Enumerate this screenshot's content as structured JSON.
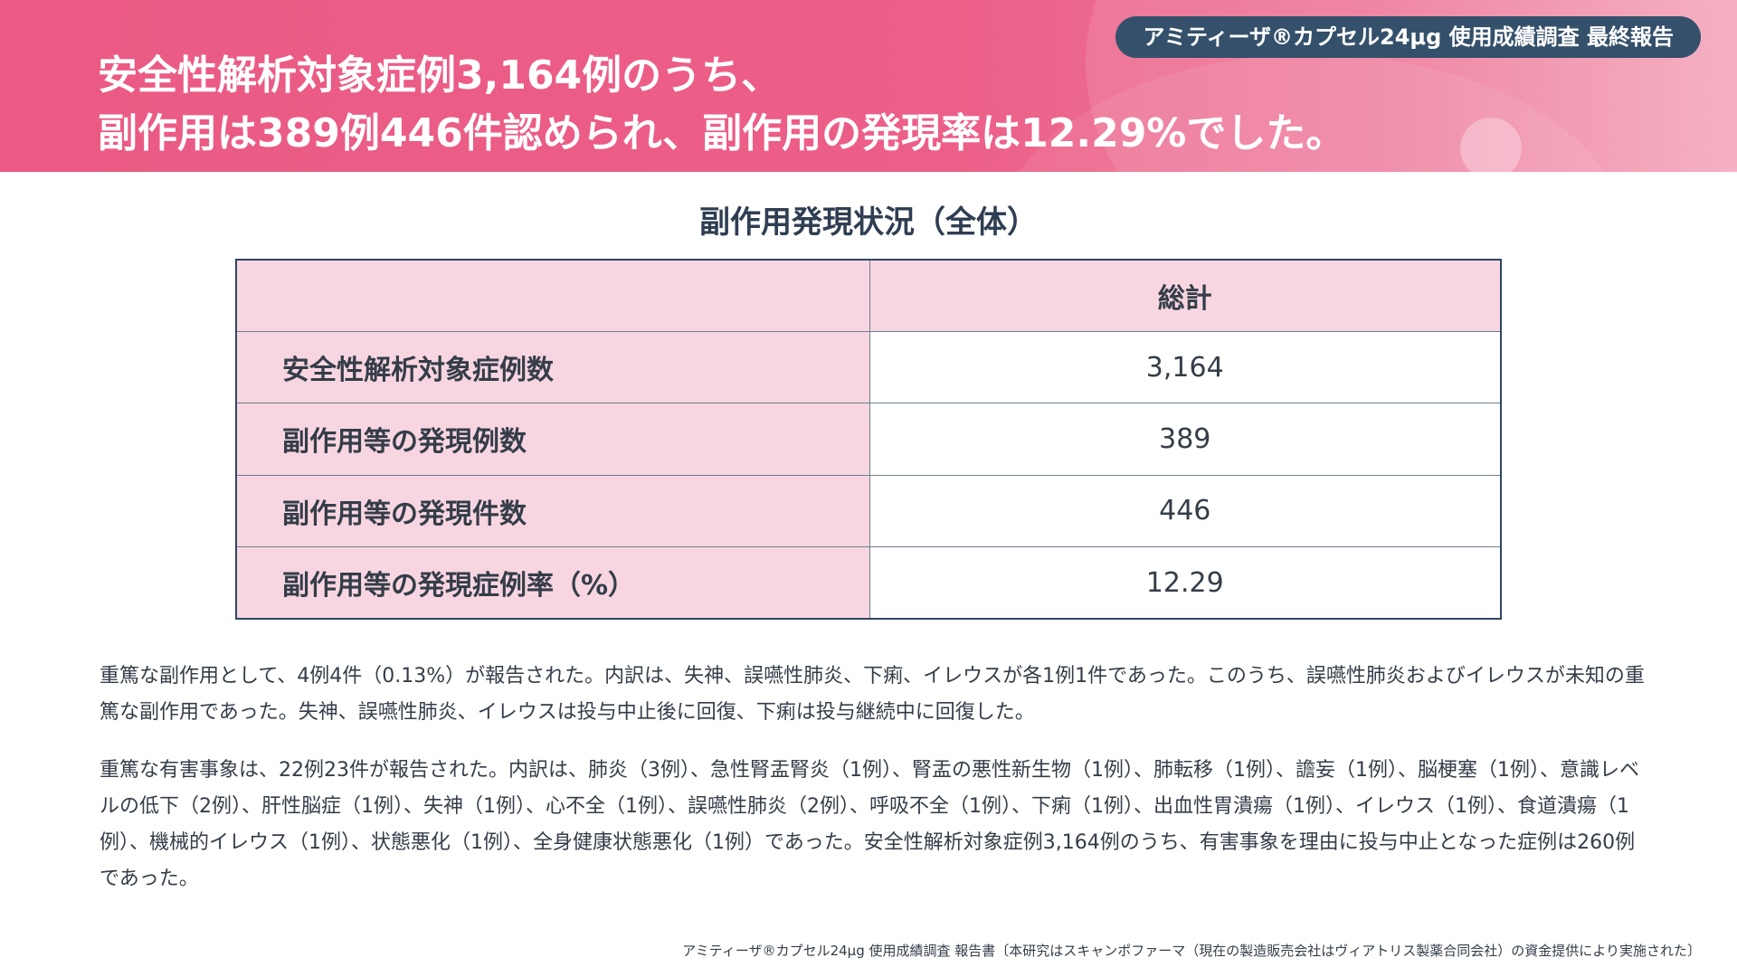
{
  "header": {
    "badge": "アミティーザ®カプセル24μg 使用成績調査 最終報告",
    "headline_line1": "安全性解析対象症例3,164例のうち、",
    "headline_line2": "副作用は389例446件認められ、副作用の発現率は12.29%でした。"
  },
  "table": {
    "title": "副作用発現状況（全体）",
    "column_header": "総計",
    "rows": [
      {
        "label": "安全性解析対象症例数",
        "value": "3,164"
      },
      {
        "label": "副作用等の発現例数",
        "value": "389"
      },
      {
        "label": "副作用等の発現件数",
        "value": "446"
      },
      {
        "label": "副作用等の発現症例率（%）",
        "value": "12.29"
      }
    ]
  },
  "paragraphs": [
    "重篤な副作用として、4例4件（0.13%）が報告された。内訳は、失神、誤嚥性肺炎、下痢、イレウスが各1例1件であった。このうち、誤嚥性肺炎およびイレウスが未知の重篤な副作用であった。失神、誤嚥性肺炎、イレウスは投与中止後に回復、下痢は投与継続中に回復した。",
    "重篤な有害事象は、22例23件が報告された。内訳は、肺炎（3例）、急性腎盂腎炎（1例）、腎盂の悪性新生物（1例）、肺転移（1例）、譫妄（1例）、脳梗塞（1例）、意識レベルの低下（2例）、肝性脳症（1例）、失神（1例）、心不全（1例）、誤嚥性肺炎（2例）、呼吸不全（1例）、下痢（1例）、出血性胃潰瘍（1例）、イレウス（1例）、食道潰瘍（1例）、機械的イレウス（1例）、状態悪化（1例）、全身健康状態悪化（1例）であった。安全性解析対象症例3,164例のうち、有害事象を理由に投与中止となった症例は260例であった。"
  ],
  "footnote": "アミティーザ®カプセル24μg 使用成績調査 報告書〔本研究はスキャンポファーマ（現在の製造販売会社はヴィアトリス製薬合同会社）の資金提供により実施された〕",
  "colors": {
    "header_pink": "#ea5a84",
    "badge_navy": "#34506b",
    "table_label_bg": "#f8d6e1",
    "table_border": "#2f4660"
  }
}
